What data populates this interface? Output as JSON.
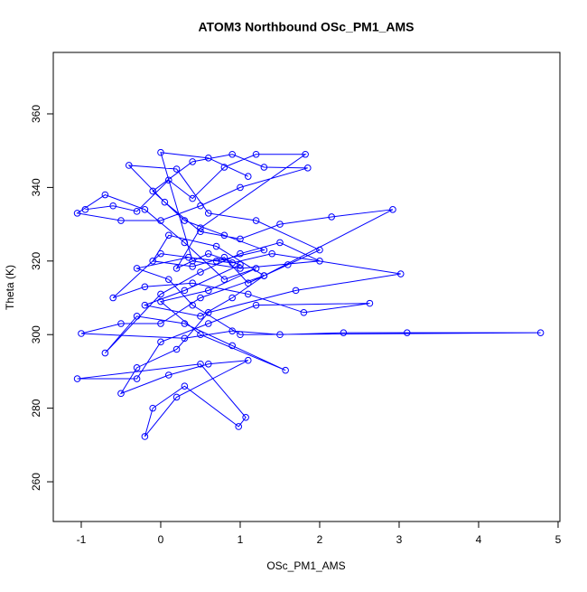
{
  "chart_data": {
    "type": "line",
    "title": "ATOM3 Northbound OSc_PM1_AMS",
    "x_label": "OSc_PM1_AMS",
    "y_label": "Theta (K)",
    "color": "#0000ff",
    "markers": true,
    "xlim": [
      -1.352,
      5.023
    ],
    "ylim": [
      249.2,
      376.7
    ],
    "xticks": [
      -1,
      0,
      1,
      2,
      3,
      4,
      5
    ],
    "yticks": [
      260,
      280,
      300,
      320,
      340,
      360
    ],
    "x": [
      -0.95,
      -0.6,
      -0.3,
      0.1,
      0.4,
      0.8,
      1.2,
      1.82,
      0.5,
      0.2,
      0.6,
      1.0,
      0.3,
      -0.2,
      0.5,
      0.9,
      1.3,
      0.7,
      0.1,
      -0.1,
      0.4,
      0.8,
      1.1,
      1.6,
      2.0,
      1.2,
      0.6,
      0.2,
      -0.4,
      0.05,
      0.5,
      1.0,
      1.5,
      2.15,
      2.92,
      1.3,
      0.5,
      0.0,
      -0.5,
      -1.0,
      0.3,
      0.9,
      1.5,
      2.3,
      3.1,
      4.78,
      1.0,
      0.4,
      0.1,
      -0.3,
      0.35,
      0.9,
      1.4,
      3.02,
      1.7,
      0.6,
      0.2,
      -0.3,
      -0.5,
      0.1,
      0.6,
      1.1,
      0.2,
      -0.2,
      -0.1,
      0.3,
      0.98,
      1.07,
      0.5,
      -1.05,
      -0.3,
      0.0,
      0.6,
      1.2,
      2.63,
      1.8,
      1.1,
      0.4,
      -0.2,
      -0.6,
      0.0,
      0.7,
      1.3,
      0.8,
      0.3,
      -0.1,
      0.4,
      0.9,
      1.3,
      1.85,
      1.0,
      0.5,
      0.0,
      -0.5,
      -1.05,
      -0.7,
      -0.2,
      0.3,
      0.8,
      1.2,
      0.6,
      0.0,
      0.5,
      1.57,
      0.9,
      0.3,
      -0.3,
      -0.7,
      0.0,
      0.5,
      1.0,
      1.5,
      2.0,
      1.0,
      0.4,
      0.0,
      0.6,
      1.1
    ],
    "values": [
      334,
      335,
      333.5,
      342,
      337,
      345.5,
      349,
      349,
      329,
      318,
      322,
      319,
      312,
      308,
      305,
      310,
      316,
      324,
      327,
      320,
      318.5,
      321,
      314,
      319,
      323,
      331,
      333,
      345,
      346,
      336,
      328,
      326,
      330,
      332,
      334,
      316,
      310,
      303,
      303,
      300.3,
      299,
      301,
      300,
      300.5,
      300.5,
      300.5,
      300,
      308,
      315,
      318,
      321,
      319.5,
      322,
      316.5,
      312,
      306,
      296,
      291,
      284,
      289,
      292,
      293,
      283,
      272.3,
      280,
      286,
      275,
      277.5,
      292,
      288,
      288,
      298,
      303,
      308,
      308.5,
      306,
      311,
      314,
      313,
      310,
      322,
      320,
      323,
      327,
      331,
      339,
      347,
      349,
      345.5,
      345.3,
      340,
      335,
      331,
      331,
      333,
      338,
      334,
      325,
      315,
      318,
      312,
      309,
      300,
      290.3,
      297,
      303,
      305,
      295,
      311,
      317,
      322,
      325,
      320,
      318,
      320,
      349.5,
      348,
      343
    ]
  }
}
